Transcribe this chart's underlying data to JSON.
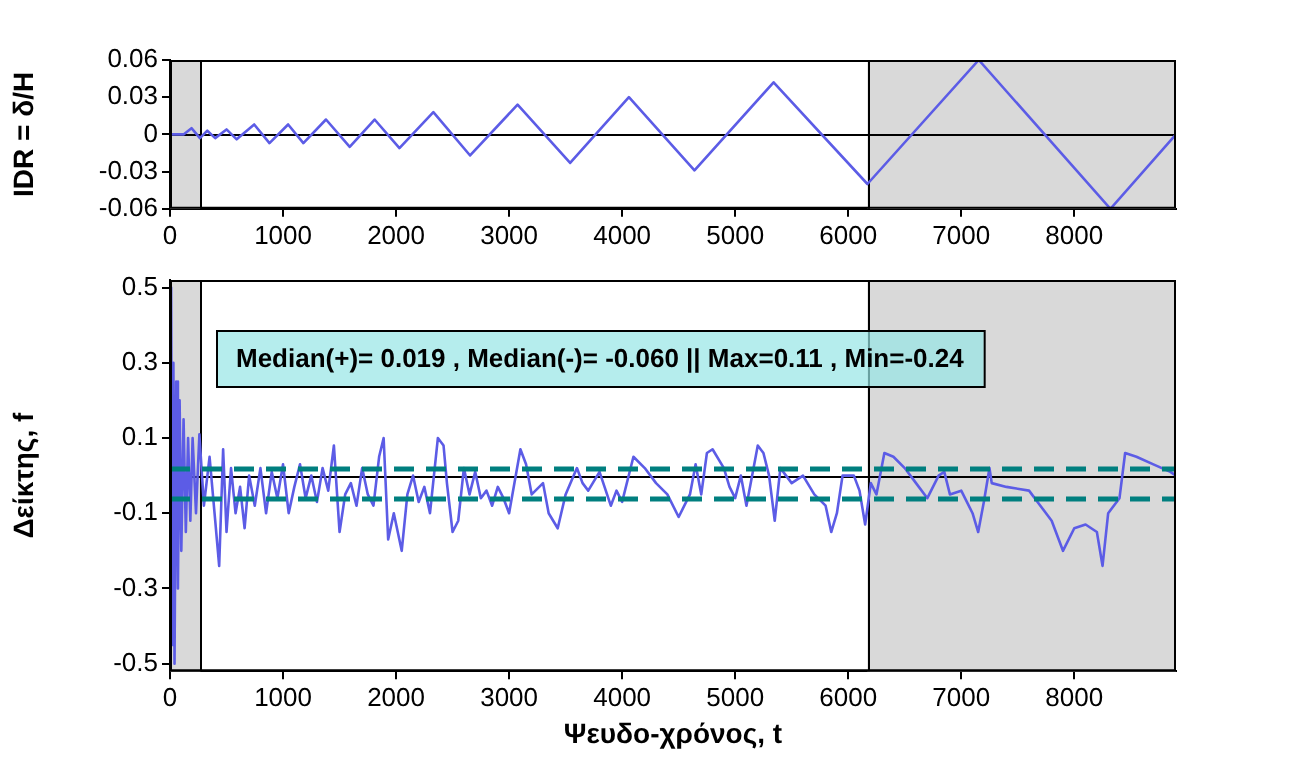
{
  "chart_data": [
    {
      "type": "line",
      "ylabel": "IDR = δ/H",
      "xlim": [
        0,
        8900
      ],
      "xticks": [
        0,
        1000,
        2000,
        3000,
        4000,
        5000,
        6000,
        7000,
        8000
      ],
      "ylim": [
        -0.06,
        0.06
      ],
      "yticks": [
        -0.06,
        -0.03,
        0,
        0.03,
        0.06
      ],
      "grid": false,
      "legend": false,
      "marker": "none",
      "series": [
        {
          "color": "#5c5ce6",
          "x": [
            0,
            120,
            190,
            265,
            330,
            400,
            500,
            590,
            745,
            880,
            1045,
            1180,
            1380,
            1590,
            1810,
            2030,
            2330,
            2655,
            3075,
            3540,
            4060,
            4640,
            5340,
            6170,
            7155,
            8320,
            8890
          ],
          "values": [
            0,
            0,
            0.005,
            -0.003,
            0.003,
            -0.003,
            0.004,
            -0.004,
            0.008,
            -0.007,
            0.008,
            -0.007,
            0.012,
            -0.01,
            0.012,
            -0.011,
            0.018,
            -0.017,
            0.024,
            -0.023,
            0.03,
            -0.029,
            0.042,
            -0.04,
            0.06,
            -0.06,
            -0.001
          ]
        }
      ],
      "bands": [
        {
          "axis": "x",
          "from": 0,
          "to": 270,
          "color": "#d9d9d9"
        },
        {
          "axis": "x",
          "from": 6170,
          "to": 8900,
          "color": "#d9d9d9"
        }
      ],
      "ref_lines": [
        {
          "axis": "y",
          "value": 0,
          "color": "#000000",
          "line_style": "solid"
        },
        {
          "axis": "x",
          "value": 270,
          "color": "#000000",
          "line_style": "solid"
        },
        {
          "axis": "x",
          "value": 6170,
          "color": "#000000",
          "line_style": "solid"
        }
      ]
    },
    {
      "type": "line",
      "xlabel": "Ψευδο-χρόνος, t",
      "ylabel": "Δείκτης, f",
      "xlim": [
        0,
        8900
      ],
      "xticks": [
        0,
        1000,
        2000,
        3000,
        4000,
        5000,
        6000,
        7000,
        8000
      ],
      "ylim": [
        -0.52,
        0.52
      ],
      "yticks": [
        -0.5,
        -0.3,
        -0.1,
        0.1,
        0.3,
        0.5
      ],
      "grid": false,
      "legend": false,
      "marker": "none",
      "annotations": [
        "Median(+)= 0.019 , Median(-)= -0.060 || Max=0.11 , Min=-0.24"
      ],
      "series": [
        {
          "color": "#5c5ce6",
          "x": [
            0,
            10,
            20,
            30,
            40,
            55,
            70,
            85,
            100,
            120,
            140,
            160,
            180,
            200,
            230,
            260,
            300,
            350,
            400,
            435,
            470,
            500,
            540,
            580,
            620,
            660,
            700,
            750,
            800,
            850,
            900,
            950,
            1000,
            1050,
            1100,
            1150,
            1200,
            1250,
            1300,
            1350,
            1400,
            1450,
            1500,
            1550,
            1600,
            1650,
            1700,
            1750,
            1800,
            1850,
            1890,
            1930,
            1980,
            2050,
            2100,
            2150,
            2200,
            2250,
            2300,
            2370,
            2420,
            2450,
            2500,
            2550,
            2600,
            2650,
            2700,
            2750,
            2800,
            2850,
            2900,
            2950,
            3000,
            3100,
            3150,
            3200,
            3300,
            3350,
            3430,
            3500,
            3600,
            3650,
            3700,
            3800,
            3900,
            3950,
            4000,
            4100,
            4200,
            4300,
            4400,
            4500,
            4600,
            4650,
            4700,
            4750,
            4800,
            4900,
            4950,
            5000,
            5050,
            5100,
            5200,
            5250,
            5300,
            5350,
            5400,
            5450,
            5500,
            5600,
            5700,
            5800,
            5850,
            5900,
            5950,
            6050,
            6100,
            6150,
            6200,
            6250,
            6320,
            6400,
            6500,
            6600,
            6700,
            6800,
            6850,
            6900,
            7000,
            7100,
            7150,
            7200,
            7250,
            7270,
            7400,
            7600,
            7700,
            7800,
            7900,
            8000,
            8100,
            8200,
            8250,
            8300,
            8400,
            8450,
            8550,
            8700,
            8850,
            8900
          ],
          "values": [
            0,
            0.5,
            -0.45,
            0.3,
            -0.5,
            0.25,
            -0.3,
            0.2,
            -0.2,
            0.15,
            -0.15,
            0.1,
            -0.12,
            0.1,
            -0.1,
            0.11,
            -0.08,
            0.05,
            -0.12,
            -0.24,
            0.07,
            -0.15,
            0.02,
            -0.1,
            -0.03,
            -0.14,
            0,
            -0.08,
            0.02,
            -0.1,
            0.01,
            -0.06,
            0.03,
            -0.1,
            -0.03,
            0.03,
            -0.06,
            0,
            -0.07,
            0.02,
            -0.04,
            0.08,
            -0.15,
            -0.05,
            -0.02,
            -0.08,
            0.02,
            -0.05,
            -0.08,
            0.05,
            0.1,
            -0.17,
            -0.1,
            -0.2,
            -0.05,
            0,
            -0.07,
            -0.03,
            -0.1,
            0.1,
            0.08,
            -0.02,
            -0.15,
            -0.12,
            0.02,
            -0.05,
            0.01,
            -0.06,
            -0.04,
            -0.08,
            -0.03,
            -0.06,
            -0.1,
            0.07,
            0.03,
            -0.05,
            -0.02,
            -0.1,
            -0.14,
            -0.05,
            0.02,
            -0.02,
            -0.04,
            0.01,
            -0.08,
            -0.04,
            -0.07,
            0.05,
            0.02,
            -0.02,
            -0.05,
            -0.11,
            -0.05,
            0.03,
            -0.05,
            0.06,
            0.07,
            0.02,
            -0.03,
            -0.06,
            0,
            -0.08,
            0.08,
            0.06,
            0,
            -0.12,
            0.02,
            0,
            -0.02,
            0,
            -0.05,
            -0.08,
            -0.15,
            -0.1,
            0,
            0,
            -0.04,
            -0.13,
            -0.02,
            -0.05,
            0.06,
            0.05,
            0.02,
            -0.02,
            -0.06,
            0,
            0.01,
            -0.05,
            -0.04,
            -0.1,
            -0.15,
            -0.07,
            0.02,
            -0.02,
            -0.03,
            -0.04,
            -0.08,
            -0.12,
            -0.2,
            -0.14,
            -0.13,
            -0.15,
            -0.24,
            -0.1,
            -0.06,
            0.06,
            0.05,
            0.03,
            0.01,
            0
          ]
        }
      ],
      "bands": [
        {
          "axis": "x",
          "from": 0,
          "to": 270,
          "color": "#d9d9d9"
        },
        {
          "axis": "x",
          "from": 6170,
          "to": 8900,
          "color": "#d9d9d9"
        }
      ],
      "ref_lines": [
        {
          "axis": "y",
          "value": 0,
          "color": "#000000",
          "line_style": "solid"
        },
        {
          "axis": "x",
          "value": 270,
          "color": "#000000",
          "line_style": "solid"
        },
        {
          "axis": "x",
          "value": 6170,
          "color": "#000000",
          "line_style": "solid"
        },
        {
          "axis": "y",
          "value": 0.019,
          "color": "#007f7f",
          "line_style": "dashed"
        },
        {
          "axis": "y",
          "value": -0.06,
          "color": "#007f7f",
          "line_style": "dashed"
        }
      ]
    }
  ]
}
